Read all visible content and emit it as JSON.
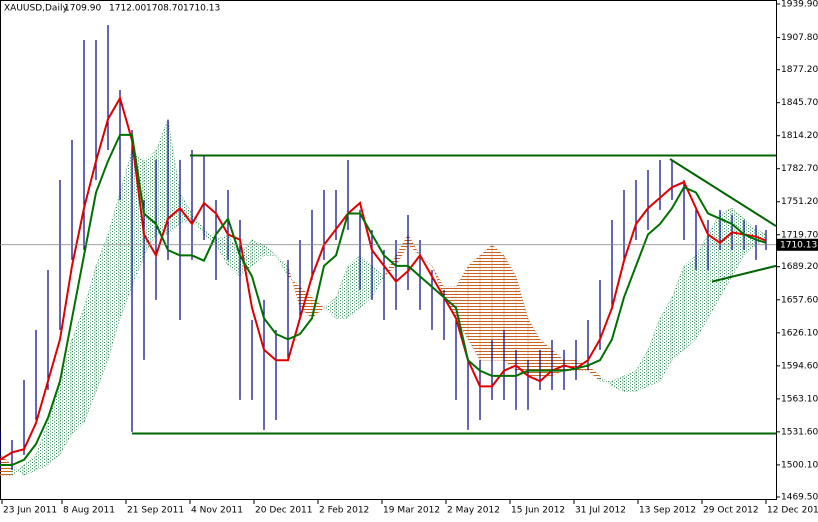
{
  "chart_data": {
    "type": "ichimoku",
    "title": "XAUUSD,Daily",
    "header_values": [
      "1709.90",
      "1712.00",
      "1708.70",
      "1710.13"
    ],
    "x": [
      0,
      6,
      12,
      18,
      24,
      30,
      36,
      42,
      48,
      54,
      60,
      66,
      72,
      78,
      84,
      90,
      96,
      102,
      108,
      114,
      120,
      126,
      132,
      138,
      144,
      150,
      156,
      162,
      168,
      174,
      180,
      186,
      192,
      198,
      204,
      210,
      216,
      222,
      228,
      234,
      240,
      246,
      252,
      258,
      264,
      270,
      276,
      282,
      288,
      294,
      300,
      306,
      312,
      318,
      324,
      330,
      336,
      342,
      348,
      354,
      360,
      366,
      372,
      378,
      383
    ],
    "xlim": [
      0,
      388
    ],
    "xticks": [
      {
        "value": 1,
        "label": "23 Jun 2011"
      },
      {
        "value": 31,
        "label": "8 Aug 2011"
      },
      {
        "value": 63,
        "label": "21 Sep 2011"
      },
      {
        "value": 95,
        "label": "4 Nov 2011"
      },
      {
        "value": 127,
        "label": "20 Dec 2011"
      },
      {
        "value": 159,
        "label": "2 Feb 2012"
      },
      {
        "value": 191,
        "label": "19 Mar 2012"
      },
      {
        "value": 223,
        "label": "2 May 2012"
      },
      {
        "value": 255,
        "label": "15 Jun 2012"
      },
      {
        "value": 287,
        "label": "31 Jul 2012"
      },
      {
        "value": 319,
        "label": "13 Sep 2012"
      },
      {
        "value": 351,
        "label": "29 Oct 2012"
      },
      {
        "value": 383,
        "label": "12 Dec 2012"
      }
    ],
    "ylim": [
      1466.6,
      1943.7
    ],
    "yticks": [
      {
        "value": 1939.9,
        "label": "1939.90"
      },
      {
        "value": 1907.8,
        "label": "1907.80"
      },
      {
        "value": 1877.2,
        "label": "1877.20"
      },
      {
        "value": 1845.7,
        "label": "1845.70"
      },
      {
        "value": 1814.2,
        "label": "1814.20"
      },
      {
        "value": 1782.7,
        "label": "1782.70"
      },
      {
        "value": 1751.2,
        "label": "1751.20"
      },
      {
        "value": 1719.7,
        "label": "1719.70"
      },
      {
        "value": 1689.2,
        "label": "1689.20"
      },
      {
        "value": 1657.6,
        "label": "1657.60"
      },
      {
        "value": 1626.1,
        "label": "1626.10"
      },
      {
        "value": 1594.6,
        "label": "1594.60"
      },
      {
        "value": 1563.1,
        "label": "1563.10"
      },
      {
        "value": 1531.6,
        "label": "1531.60"
      },
      {
        "value": 1500.1,
        "label": "1500.10"
      },
      {
        "value": 1469.5,
        "label": "1469.50"
      }
    ],
    "price": {
      "color": "#000080",
      "high": [
        1533.5,
        1523.9,
        1581.2,
        1628.9,
        1686.1,
        1772.0,
        1810.1,
        1905.5,
        1905.5,
        1919.8,
        1857.8,
        1819.7,
        1752.9,
        1791.1,
        1829.2,
        1791.1,
        1800.6,
        1795.8,
        1752.9,
        1762.4,
        1733.8,
        1638.4,
        1657.5,
        1628.9,
        1695.7,
        1714.7,
        1743.4,
        1762.4,
        1762.4,
        1791.1,
        1743.4,
        1724.3,
        1705.2,
        1714.7,
        1738.6,
        1714.7,
        1686.1,
        1667.0,
        1638.4,
        1600.3,
        1600.3,
        1619.3,
        1628.9,
        1609.8,
        1600.3,
        1609.8,
        1619.3,
        1609.8,
        1619.3,
        1638.4,
        1676.6,
        1733.8,
        1762.4,
        1772.0,
        1781.5,
        1791.1,
        1791.1,
        1772.0,
        1743.4,
        1733.8,
        1743.4,
        1738.6,
        1733.8,
        1729.0,
        1724.3
      ],
      "low": [
        1495.3,
        1495.3,
        1509.6,
        1543.0,
        1571.6,
        1628.9,
        1695.7,
        1705.2,
        1772.0,
        1800.6,
        1752.9,
        1531.6,
        1600.3,
        1657.5,
        1695.7,
        1638.4,
        1695.7,
        1714.7,
        1676.6,
        1695.7,
        1562.1,
        1562.1,
        1533.5,
        1543.0,
        1600.3,
        1638.4,
        1676.6,
        1695.7,
        1714.7,
        1724.3,
        1667.0,
        1657.5,
        1638.4,
        1648.0,
        1667.0,
        1648.0,
        1628.9,
        1619.3,
        1562.1,
        1533.5,
        1543.0,
        1562.1,
        1562.1,
        1552.6,
        1552.6,
        1571.6,
        1571.6,
        1571.6,
        1581.2,
        1590.7,
        1609.8,
        1648.0,
        1695.7,
        1714.7,
        1724.3,
        1743.4,
        1752.9,
        1714.7,
        1686.1,
        1686.1,
        1705.2,
        1705.2,
        1705.2,
        1695.7,
        1705.2
      ]
    },
    "lines": [
      {
        "color": "#e00000",
        "values": [
          1505,
          1512,
          1515,
          1540,
          1580,
          1620,
          1690,
          1745,
          1790,
          1830,
          1850,
          1810,
          1720,
          1700,
          1735,
          1745,
          1730,
          1750,
          1740,
          1720,
          1715,
          1650,
          1610,
          1600,
          1600,
          1640,
          1680,
          1710,
          1725,
          1740,
          1750,
          1705,
          1690,
          1675,
          1685,
          1700,
          1680,
          1660,
          1640,
          1600,
          1575,
          1575,
          1590,
          1595,
          1585,
          1580,
          1590,
          1595,
          1592,
          1600,
          1620,
          1650,
          1695,
          1730,
          1745,
          1755,
          1765,
          1770,
          1745,
          1720,
          1712,
          1722,
          1720,
          1718,
          1714
        ]
      },
      {
        "color": "#007000",
        "values": [
          1500,
          1500,
          1505,
          1520,
          1545,
          1580,
          1640,
          1700,
          1760,
          1790,
          1815,
          1815,
          1740,
          1730,
          1705,
          1700,
          1700,
          1695,
          1720,
          1735,
          1700,
          1680,
          1640,
          1625,
          1620,
          1625,
          1640,
          1690,
          1700,
          1740,
          1740,
          1720,
          1700,
          1690,
          1690,
          1680,
          1670,
          1660,
          1650,
          1600,
          1590,
          1585,
          1585,
          1585,
          1590,
          1590,
          1590,
          1590,
          1592,
          1595,
          1600,
          1620,
          1660,
          1690,
          1720,
          1730,
          1745,
          1765,
          1760,
          1740,
          1735,
          1730,
          1720,
          1715,
          1712
        ]
      }
    ],
    "cloud": {
      "up_color": "#2e8b57",
      "down_color": "#c8621e",
      "span_a": [
        1490,
        1490,
        1500,
        1510,
        1540,
        1580,
        1620,
        1650,
        1690,
        1720,
        1760,
        1800,
        1790,
        1800,
        1830,
        1760,
        1740,
        1725,
        1715,
        1720,
        1700,
        1715,
        1710,
        1700,
        1690,
        1650,
        1640,
        1650,
        1660,
        1690,
        1700,
        1690,
        1680,
        1690,
        1710,
        1700,
        1690,
        1660,
        1640,
        1620,
        1600,
        1600,
        1600,
        1590,
        1585,
        1585,
        1585,
        1590,
        1590,
        1590,
        1580,
        1580,
        1585,
        1590,
        1610,
        1640,
        1660,
        1690,
        1700,
        1720,
        1740,
        1745,
        1735,
        1725,
        1720
      ],
      "span_b": [
        1510,
        1500,
        1490,
        1495,
        1500,
        1510,
        1530,
        1540,
        1570,
        1600,
        1640,
        1670,
        1700,
        1720,
        1720,
        1730,
        1735,
        1720,
        1710,
        1690,
        1680,
        1690,
        1700,
        1700,
        1680,
        1670,
        1660,
        1650,
        1640,
        1640,
        1650,
        1660,
        1680,
        1700,
        1720,
        1700,
        1690,
        1670,
        1670,
        1690,
        1700,
        1710,
        1700,
        1680,
        1640,
        1620,
        1610,
        1600,
        1600,
        1595,
        1585,
        1575,
        1570,
        1570,
        1575,
        1580,
        1600,
        1610,
        1620,
        1640,
        1660,
        1680,
        1700,
        1710,
        1715
      ]
    },
    "trendlines": [
      {
        "color": "#006400",
        "x": [
          95,
          388
        ],
        "y": [
          1795.3,
          1795.3
        ]
      },
      {
        "color": "#006400",
        "x": [
          66,
          388
        ],
        "y": [
          1530.0,
          1530.0
        ]
      },
      {
        "color": "#006400",
        "x": [
          335,
          388
        ],
        "y": [
          1792.0,
          1728.0
        ]
      },
      {
        "color": "#006400",
        "x": [
          356,
          388
        ],
        "y": [
          1675.0,
          1690.0
        ]
      }
    ],
    "last_price": {
      "value": 1710.13,
      "color": "#808080"
    }
  }
}
